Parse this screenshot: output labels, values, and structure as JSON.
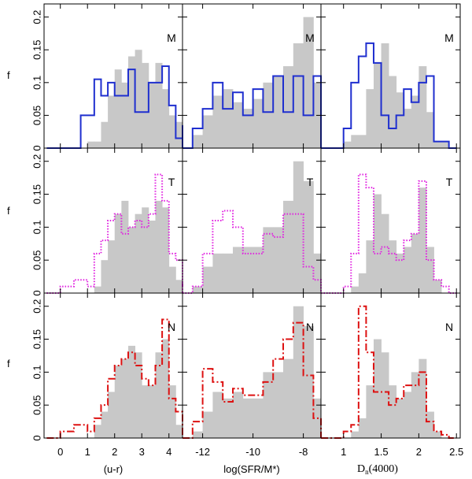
{
  "figure": {
    "y_axis_label": "f",
    "y_ticks": [
      "0",
      "0.05",
      "0.1",
      "0.15",
      "0.2"
    ],
    "y_tick_values": [
      0,
      0.05,
      0.1,
      0.15,
      0.2
    ],
    "row_tags": [
      "M",
      "T",
      "N"
    ],
    "columns": [
      {
        "xlabel": "(u-r)",
        "xlim": [
          -0.6,
          4.5
        ],
        "ticks": [
          0,
          1,
          2,
          3,
          4
        ],
        "tick_labels": [
          "0",
          "1",
          "2",
          "3",
          "4"
        ]
      },
      {
        "xlabel": "log(SFR/M*)",
        "xlim": [
          -12.8,
          -7.3
        ],
        "ticks": [
          -12,
          -10,
          -8
        ],
        "tick_labels": [
          "-12",
          "-10",
          "-8"
        ]
      },
      {
        "xlabel_main": "D",
        "xlabel_sub": "n",
        "xlabel_rest": "(4000)",
        "xlim": [
          0.7,
          2.55
        ],
        "ticks": [
          1,
          1.5,
          2,
          2.5
        ],
        "tick_labels": [
          "1",
          "1.5",
          "2",
          "2.5"
        ]
      }
    ],
    "colors": {
      "gray": "#c8c8c8",
      "M": "#1f2fcf",
      "T": "#e020e0",
      "N": "#dd1111"
    }
  },
  "chart_data": [
    {
      "type": "bar",
      "panel": "u-r / M",
      "row": 0,
      "col": 0,
      "ylim": [
        0,
        0.22
      ],
      "xlabel": "(u-r)",
      "ylabel": "f",
      "gray_bins": {
        "start": -0.5,
        "width": 0.25,
        "values": [
          0,
          0,
          0,
          0,
          0,
          0,
          0.01,
          0.01,
          0.04,
          0.08,
          0.12,
          0.1,
          0.14,
          0.15,
          0.13,
          0.1,
          0.13,
          0.09,
          0.05,
          0.04,
          0.01,
          0.01,
          0,
          0,
          0,
          0,
          0,
          0,
          0
        ]
      },
      "series": [
        {
          "name": "M",
          "style": "solid",
          "start": -0.5,
          "width": 0.25,
          "values": [
            0,
            0,
            0,
            0,
            0,
            0.05,
            0.05,
            0.105,
            0.08,
            0.1,
            0.08,
            0.08,
            0.12,
            0.055,
            0.055,
            0.1,
            0.1,
            0.125,
            0.065,
            0.015,
            0.015,
            0.035,
            0.035,
            0.025,
            0.025,
            0.01,
            0.01,
            0.025,
            0
          ]
        }
      ]
    },
    {
      "type": "bar",
      "panel": "sSFR / M",
      "row": 0,
      "col": 1,
      "ylim": [
        0,
        0.22
      ],
      "xlabel": "log(SFR/M*)",
      "ylabel": "f",
      "gray_bins": {
        "start": -12.8,
        "width": 0.4,
        "values": [
          0,
          0.02,
          0.05,
          0.08,
          0.09,
          0.07,
          0.06,
          0.075,
          0.1,
          0.11,
          0.125,
          0.16,
          0.2,
          0.1,
          0.04,
          0.01
        ]
      },
      "series": [
        {
          "name": "M",
          "style": "solid",
          "start": -12.8,
          "width": 0.4,
          "values": [
            0,
            0.03,
            0.06,
            0.1,
            0.06,
            0.085,
            0.05,
            0.09,
            0.055,
            0.11,
            0.055,
            0.11,
            0.05,
            0.11,
            0.015,
            0
          ]
        }
      ]
    },
    {
      "type": "bar",
      "panel": "Dn4000 / M",
      "row": 0,
      "col": 2,
      "ylim": [
        0,
        0.22
      ],
      "xlabel": "Dn(4000)",
      "ylabel": "f",
      "gray_bins": {
        "start": 0.7,
        "width": 0.1,
        "values": [
          0,
          0,
          0,
          0.01,
          0.02,
          0.02,
          0.09,
          0.13,
          0.16,
          0.11,
          0.085,
          0.06,
          0.08,
          0.125,
          0.055,
          0.01,
          0.01,
          0
        ]
      },
      "series": [
        {
          "name": "M",
          "style": "solid",
          "start": 0.7,
          "width": 0.1,
          "values": [
            0,
            0,
            0,
            0.03,
            0.1,
            0.14,
            0.16,
            0.13,
            0.05,
            0.03,
            0.05,
            0.09,
            0.07,
            0.1,
            0.11,
            0.01,
            0.01,
            0
          ]
        }
      ]
    },
    {
      "type": "bar",
      "panel": "u-r / T",
      "row": 1,
      "col": 0,
      "ylim": [
        0,
        0.22
      ],
      "xlabel": "(u-r)",
      "ylabel": "f",
      "gray_bins": {
        "start": -0.5,
        "width": 0.25,
        "values": [
          0,
          0,
          0,
          0,
          0,
          0,
          0,
          0.01,
          0.05,
          0.08,
          0.12,
          0.14,
          0.1,
          0.12,
          0.13,
          0.11,
          0.14,
          0.13,
          0.04,
          0.02,
          0.01,
          0,
          0,
          0,
          0,
          0,
          0,
          0,
          0
        ]
      },
      "series": [
        {
          "name": "T",
          "style": "dotted",
          "start": -0.5,
          "width": 0.25,
          "values": [
            0,
            0,
            0.01,
            0.01,
            0.02,
            0.02,
            0.01,
            0.06,
            0.08,
            0.11,
            0.12,
            0.09,
            0.1,
            0.11,
            0.1,
            0.12,
            0.18,
            0.14,
            0.06,
            0.05,
            0.04,
            0.03,
            0.02,
            0.02,
            0.015,
            0.01,
            0.01,
            0.015,
            0
          ]
        }
      ]
    },
    {
      "type": "bar",
      "panel": "sSFR / T",
      "row": 1,
      "col": 1,
      "ylim": [
        0,
        0.22
      ],
      "xlabel": "log(SFR/M*)",
      "ylabel": "f",
      "gray_bins": {
        "start": -12.8,
        "width": 0.4,
        "values": [
          0,
          0.01,
          0.04,
          0.06,
          0.06,
          0.07,
          0.07,
          0.07,
          0.1,
          0.1,
          0.14,
          0.2,
          0.17,
          0.06,
          0.02,
          0
        ]
      },
      "series": [
        {
          "name": "T",
          "style": "dotted",
          "start": -12.8,
          "width": 0.4,
          "values": [
            0,
            0.01,
            0.06,
            0.11,
            0.125,
            0.1,
            0.06,
            0.06,
            0.09,
            0.085,
            0.12,
            0.12,
            0.04,
            0.02,
            0.01,
            0
          ]
        }
      ]
    },
    {
      "type": "bar",
      "panel": "Dn4000 / T",
      "row": 1,
      "col": 2,
      "ylim": [
        0,
        0.22
      ],
      "xlabel": "Dn(4000)",
      "ylabel": "f",
      "gray_bins": {
        "start": 0.7,
        "width": 0.1,
        "values": [
          0,
          0,
          0,
          0,
          0.01,
          0.03,
          0.08,
          0.15,
          0.12,
          0.08,
          0.06,
          0.07,
          0.09,
          0.16,
          0.07,
          0.02,
          0,
          0
        ]
      },
      "series": [
        {
          "name": "T",
          "style": "dotted",
          "start": 0.7,
          "width": 0.1,
          "values": [
            0,
            0,
            0,
            0.01,
            0.06,
            0.18,
            0.16,
            0.06,
            0.07,
            0.06,
            0.05,
            0.08,
            0.09,
            0.17,
            0.05,
            0.02,
            0.01,
            0
          ]
        }
      ]
    },
    {
      "type": "bar",
      "panel": "u-r / N",
      "row": 2,
      "col": 0,
      "ylim": [
        0,
        0.22
      ],
      "xlabel": "(u-r)",
      "ylabel": "f",
      "gray_bins": {
        "start": -0.5,
        "width": 0.25,
        "values": [
          0,
          0,
          0,
          0,
          0,
          0,
          0,
          0.02,
          0.04,
          0.07,
          0.11,
          0.12,
          0.14,
          0.13,
          0.08,
          0.08,
          0.13,
          0.15,
          0.08,
          0.02,
          0.01,
          0.01,
          0,
          0,
          0,
          0,
          0,
          0,
          0
        ]
      },
      "series": [
        {
          "name": "N",
          "style": "dashdot",
          "start": -0.5,
          "width": 0.25,
          "values": [
            0,
            0,
            0.01,
            0.01,
            0.02,
            0.02,
            0.01,
            0.03,
            0.05,
            0.09,
            0.11,
            0.12,
            0.13,
            0.11,
            0.09,
            0.08,
            0.11,
            0.18,
            0.06,
            0.04,
            0.02,
            0.01,
            0.01,
            0.005,
            0,
            0,
            0,
            0,
            0
          ]
        }
      ]
    },
    {
      "type": "bar",
      "panel": "sSFR / N",
      "row": 2,
      "col": 1,
      "ylim": [
        0,
        0.22
      ],
      "xlabel": "log(SFR/M*)",
      "ylabel": "f",
      "gray_bins": {
        "start": -12.8,
        "width": 0.4,
        "values": [
          0,
          0.01,
          0.04,
          0.07,
          0.06,
          0.07,
          0.06,
          0.06,
          0.1,
          0.1,
          0.12,
          0.2,
          0.17,
          0.06,
          0.02,
          0
        ]
      },
      "series": [
        {
          "name": "N",
          "style": "dashdot",
          "start": -12.8,
          "width": 0.4,
          "values": [
            0,
            0.025,
            0.105,
            0.085,
            0.055,
            0.075,
            0.065,
            0.065,
            0.085,
            0.12,
            0.15,
            0.175,
            0.095,
            0.03,
            0.02,
            0
          ]
        }
      ]
    },
    {
      "type": "bar",
      "panel": "Dn4000 / N",
      "row": 2,
      "col": 2,
      "ylim": [
        0,
        0.22
      ],
      "xlabel": "Dn(4000)",
      "ylabel": "f",
      "gray_bins": {
        "start": 0.7,
        "width": 0.1,
        "values": [
          0,
          0,
          0,
          0,
          0.01,
          0.03,
          0.08,
          0.15,
          0.13,
          0.08,
          0.06,
          0.07,
          0.1,
          0.12,
          0.04,
          0.01,
          0,
          0
        ]
      },
      "series": [
        {
          "name": "N",
          "style": "dashdot",
          "start": 0.7,
          "width": 0.1,
          "values": [
            0,
            0,
            0,
            0.01,
            0.02,
            0.2,
            0.13,
            0.07,
            0.07,
            0.05,
            0.06,
            0.08,
            0.08,
            0.1,
            0.025,
            0.01,
            0.005,
            0
          ]
        }
      ]
    }
  ]
}
